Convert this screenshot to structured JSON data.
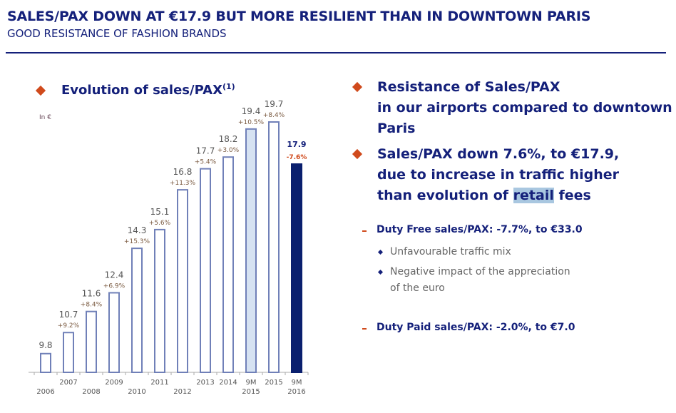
{
  "header": {
    "title": "SALES/PAX DOWN AT €17.9 BUT MORE RESILIENT THAN IN DOWNTOWN PARIS",
    "subtitle": "GOOD RESISTANCE OF FASHION BRANDS"
  },
  "left": {
    "heading": "Evolution of sales/PAX",
    "footnote_mark": "(1)"
  },
  "right": {
    "bullet1": [
      "Resistance of Sales/PAX",
      "in our airports compared to downtown",
      "Paris"
    ],
    "bullet2": [
      "Sales/PAX down 7.6%, to €17.9,",
      "due to increase in traffic higher"
    ],
    "bullet2_line3": {
      "before": "than evolution of ",
      "highlight": "retail",
      "after": " fees"
    },
    "duty_free": "Duty Free sales/PAX: -7.7%, to €33.0",
    "duty_free_points": [
      "Unfavourable traffic mix",
      "Negative impact of the appreciation",
      "of the euro"
    ],
    "duty_paid": "Duty Paid sales/PAX: -2.0%, to €7.0"
  },
  "colors": {
    "navy": "#14207a",
    "accent": "#d04a1c",
    "bar_outline": "#7080b8",
    "bar_highlight": "#d6e2f2",
    "bar_dark": "#0a1f6e"
  },
  "chart_data": {
    "type": "bar",
    "unit_label": "In €",
    "categories": [
      "2006",
      "2007",
      "2008",
      "2009",
      "2010",
      "2011",
      "2012",
      "2013",
      "2014",
      "9M 2015",
      "2015",
      "9M 2016"
    ],
    "values": [
      9.8,
      10.7,
      11.6,
      12.4,
      14.3,
      15.1,
      16.8,
      17.7,
      18.2,
      19.4,
      19.7,
      17.9
    ],
    "value_labels": [
      "9.8",
      "10.7",
      "11.6",
      "12.4",
      "14.3",
      "15.1",
      "16.8",
      "17.7",
      "18.2",
      "19.4",
      "19.7",
      "17.9"
    ],
    "growth_labels": [
      "",
      "+9.2%",
      "+8.4%",
      "+6.9%",
      "+15.3%",
      "+5.6%",
      "+11.3%",
      "+5.4%",
      "+3.0%",
      "+10.5%",
      "+8.4%",
      "-7.6%"
    ],
    "bar_styles": [
      "outline",
      "outline",
      "outline",
      "outline",
      "outline",
      "outline",
      "outline",
      "outline",
      "outline",
      "light",
      "outline",
      "dark"
    ],
    "ylim": [
      9,
      20
    ],
    "grid": false
  }
}
